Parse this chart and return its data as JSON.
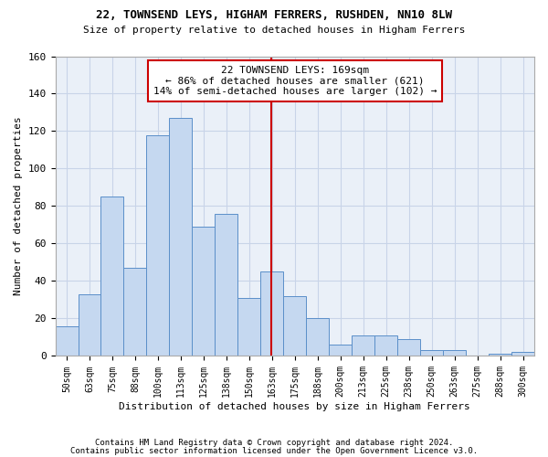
{
  "title1": "22, TOWNSEND LEYS, HIGHAM FERRERS, RUSHDEN, NN10 8LW",
  "title2": "Size of property relative to detached houses in Higham Ferrers",
  "xlabel": "Distribution of detached houses by size in Higham Ferrers",
  "ylabel": "Number of detached properties",
  "categories": [
    "50sqm",
    "63sqm",
    "75sqm",
    "88sqm",
    "100sqm",
    "113sqm",
    "125sqm",
    "138sqm",
    "150sqm",
    "163sqm",
    "175sqm",
    "188sqm",
    "200sqm",
    "213sqm",
    "225sqm",
    "238sqm",
    "250sqm",
    "263sqm",
    "275sqm",
    "288sqm",
    "300sqm"
  ],
  "bar_heights": [
    16,
    33,
    85,
    47,
    118,
    127,
    69,
    76,
    31,
    45,
    32,
    20,
    6,
    11,
    11,
    9,
    3,
    3,
    0,
    1,
    2
  ],
  "bar_color": "#c5d8f0",
  "bar_edge_color": "#5b8fc9",
  "property_line_x": 9,
  "annotation_text": "22 TOWNSEND LEYS: 169sqm\n← 86% of detached houses are smaller (621)\n14% of semi-detached houses are larger (102) →",
  "annotation_box_color": "#ffffff",
  "annotation_box_edge": "#cc0000",
  "vline_color": "#cc0000",
  "ylim": [
    0,
    160
  ],
  "yticks": [
    0,
    20,
    40,
    60,
    80,
    100,
    120,
    140,
    160
  ],
  "footer1": "Contains HM Land Registry data © Crown copyright and database right 2024.",
  "footer2": "Contains public sector information licensed under the Open Government Licence v3.0.",
  "bg_color": "#ffffff",
  "plot_bg_color": "#eaf0f8",
  "grid_color": "#c8d4e8"
}
